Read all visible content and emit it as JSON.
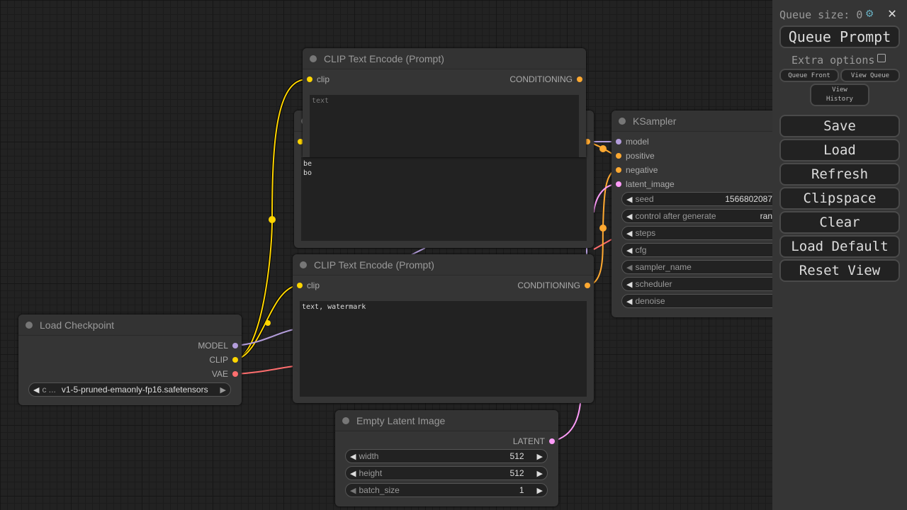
{
  "panel": {
    "queue_size_label": "Queue size: 0",
    "queue_prompt": "Queue Prompt",
    "extra_options": "Extra options",
    "queue_front": "Queue Front",
    "view_queue": "View Queue",
    "view_history": "View History",
    "buttons": [
      "Save",
      "Load",
      "Refresh",
      "Clipspace",
      "Clear",
      "Load Default",
      "Reset View"
    ]
  },
  "nodes": {
    "clip_top": {
      "title": "CLIP Text Encode (Prompt)",
      "input": "clip",
      "output": "CONDITIONING",
      "placeholder": "text"
    },
    "clip_back": {
      "text_line1": "be",
      "text_line2": "bo"
    },
    "clip_bottom": {
      "title": "CLIP Text Encode (Prompt)",
      "input": "clip",
      "output": "CONDITIONING",
      "text": "text, watermark"
    },
    "ksampler": {
      "title": "KSampler",
      "inputs": [
        "model",
        "positive",
        "negative",
        "latent_image"
      ],
      "widgets": [
        {
          "label": "seed",
          "value": "1566802087"
        },
        {
          "label": "control after generate",
          "value": "ran"
        },
        {
          "label": "steps",
          "value": ""
        },
        {
          "label": "cfg",
          "value": ""
        },
        {
          "label": "sampler_name",
          "value": ""
        },
        {
          "label": "scheduler",
          "value": ""
        },
        {
          "label": "denoise",
          "value": ""
        }
      ]
    },
    "checkpoint": {
      "title": "Load Checkpoint",
      "outputs": [
        "MODEL",
        "CLIP",
        "VAE"
      ],
      "widget_label": "c ...",
      "widget_value": "v1-5-pruned-emaonly-fp16.safetensors"
    },
    "latent": {
      "title": "Empty Latent Image",
      "output": "LATENT",
      "widgets": [
        {
          "label": "width",
          "value": "512"
        },
        {
          "label": "height",
          "value": "512"
        },
        {
          "label": "batch_size",
          "value": "1"
        }
      ]
    }
  },
  "colors": {
    "clip": "#ffd500",
    "model": "#b39ddb",
    "conditioning": "#ffa931",
    "latent": "#ff9cf9",
    "vae": "#ff6e6e"
  }
}
